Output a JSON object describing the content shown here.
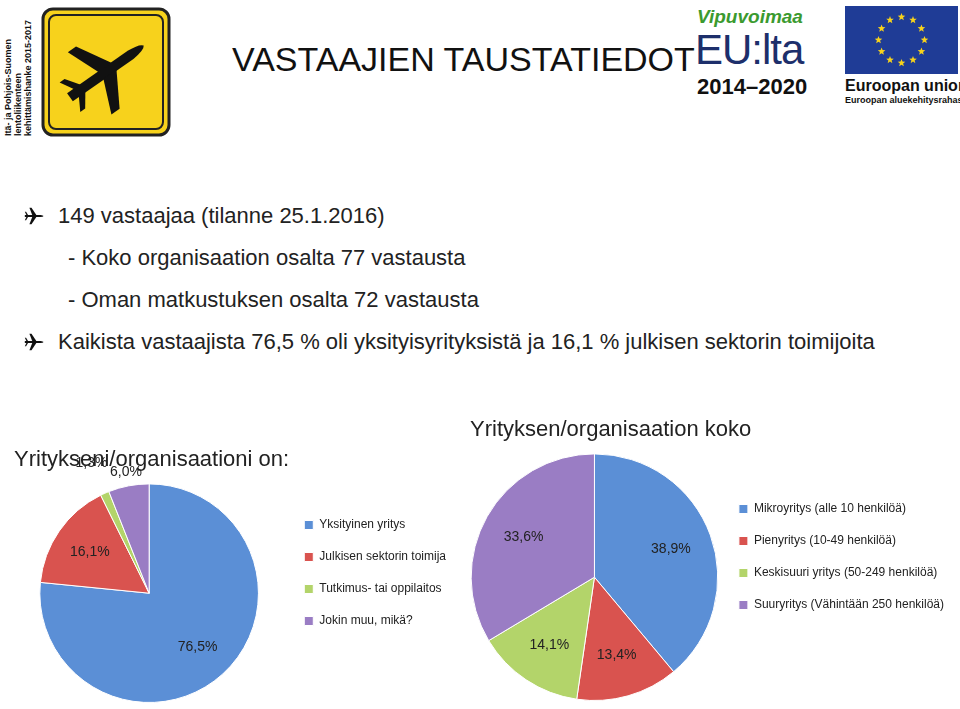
{
  "header": {
    "title": "VASTAAJIEN TAUSTATIEDOT",
    "side_text": [
      "Itä- ja Pohjois-Suomen",
      "lentoliikenteen",
      "kehittämishanke 2015-2017"
    ],
    "logos": [
      "Vipuvoimaa",
      "EU:lta",
      "2014–2020",
      "Euroopan unioni",
      "Euroopan aluekehitysrahasto"
    ]
  },
  "bullets": [
    {
      "text": "149 vastaajaa (tilanne 25.1.2016)",
      "sub": [
        "- Koko organisaation osalta 77 vastausta",
        "- Oman matkustuksen osalta 72 vastausta"
      ]
    },
    {
      "text": "Kaikista vastaajista 76,5 % oli yksityisyrityksistä ja 16,1 % julkisen sektorin toimijoita"
    }
  ],
  "chart_data": [
    {
      "type": "pie",
      "title": "Yritykseni/organisaationi on:",
      "categories": [
        "Yksityinen yritys",
        "Julkisen sektorin toimija",
        "Tutkimus- tai oppilaitos",
        "Jokin muu, mikä?"
      ],
      "values": [
        76.5,
        16.1,
        1.3,
        6.0
      ],
      "value_labels": [
        "76,5%",
        "16,1%",
        "1,3%",
        "6,0%"
      ],
      "colors": [
        "#5b8fd6",
        "#d9534f",
        "#b3d46a",
        "#9a7dc4"
      ],
      "data_labels": true,
      "legend": "right"
    },
    {
      "type": "pie",
      "title": "Yrityksen/organisaation koko",
      "categories": [
        "Mikroyritys (alle 10 henkilöä)",
        "Pienyritys (10-49 henkilöä)",
        "Keskisuuri yritys (50-249 henkilöä)",
        "Suuryritys (Vähintään 250 henkilöä)"
      ],
      "values": [
        38.9,
        13.4,
        14.1,
        33.6
      ],
      "value_labels": [
        "38,9%",
        "13,4%",
        "14,1%",
        "33,6%"
      ],
      "colors": [
        "#5b8fd6",
        "#d9534f",
        "#b3d46a",
        "#9a7dc4"
      ],
      "data_labels": true,
      "legend": "right"
    }
  ]
}
